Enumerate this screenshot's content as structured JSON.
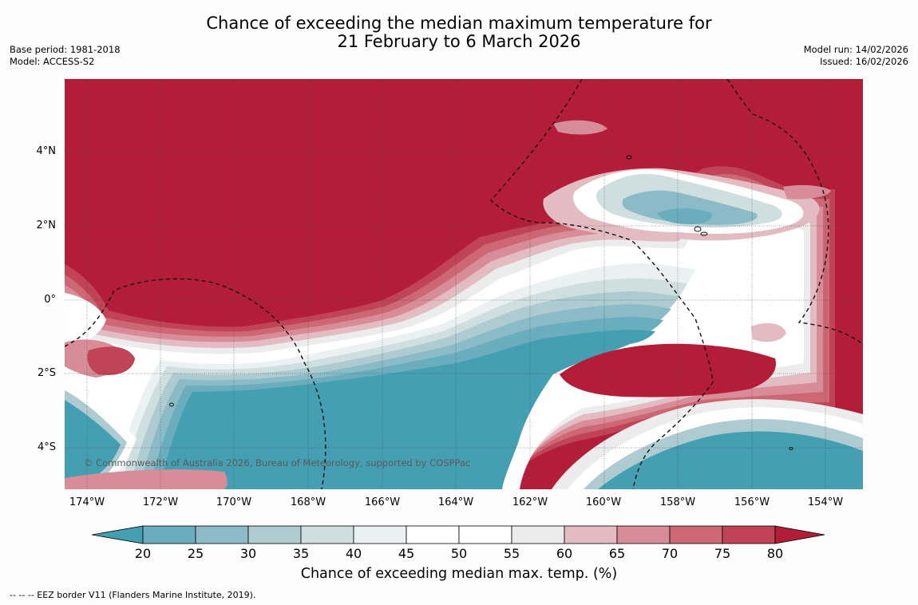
{
  "title": {
    "line1": "Chance of exceeding the median maximum temperature for",
    "line2": "21 February to 6 March 2026"
  },
  "meta_left": {
    "base_period": "Base period: 1981-2018",
    "model": "Model: ACCESS-S2"
  },
  "meta_right": {
    "model_run": "Model run: 14/02/2026",
    "issued": "Issued: 16/02/2026"
  },
  "map": {
    "copyright": "© Commonwealth of Australia 2026, Bureau of Meteorology, supported by COSPPac",
    "lat_labels": [
      "4°N",
      "2°N",
      "0°",
      "2°S",
      "4°S"
    ],
    "lon_labels": [
      "174°W",
      "172°W",
      "170°W",
      "168°W",
      "166°W",
      "164°W",
      "162°W",
      "160°W",
      "158°W",
      "156°W",
      "154°W"
    ],
    "extent": {
      "lon_min": -174.6,
      "lon_max": -153.0,
      "lat_min": -5.1,
      "lat_max": 5.9
    },
    "dominant_categories": {
      "north": "80+ (strong warm)",
      "south_centre": "below 20 (strong cool)",
      "southeast": "below 20 (strong cool)"
    }
  },
  "colorbar": {
    "ticks": [
      "20",
      "25",
      "30",
      "35",
      "40",
      "45",
      "50",
      "55",
      "60",
      "65",
      "70",
      "75",
      "80"
    ],
    "colors": [
      "#449fb2",
      "#6aadbd",
      "#8bbbc7",
      "#adcbd0",
      "#cfdedf",
      "#ebf1f2",
      "#ffffff",
      "#ffffff",
      "#ececec",
      "#e3bcc2",
      "#d88c97",
      "#cc6773",
      "#c04456",
      "#b31d38"
    ],
    "title": "Chance of exceeding median max. temp. (%)"
  },
  "footnote": "--  --  -- EEZ border V11 (Flanders Marine Institute, 2019)."
}
